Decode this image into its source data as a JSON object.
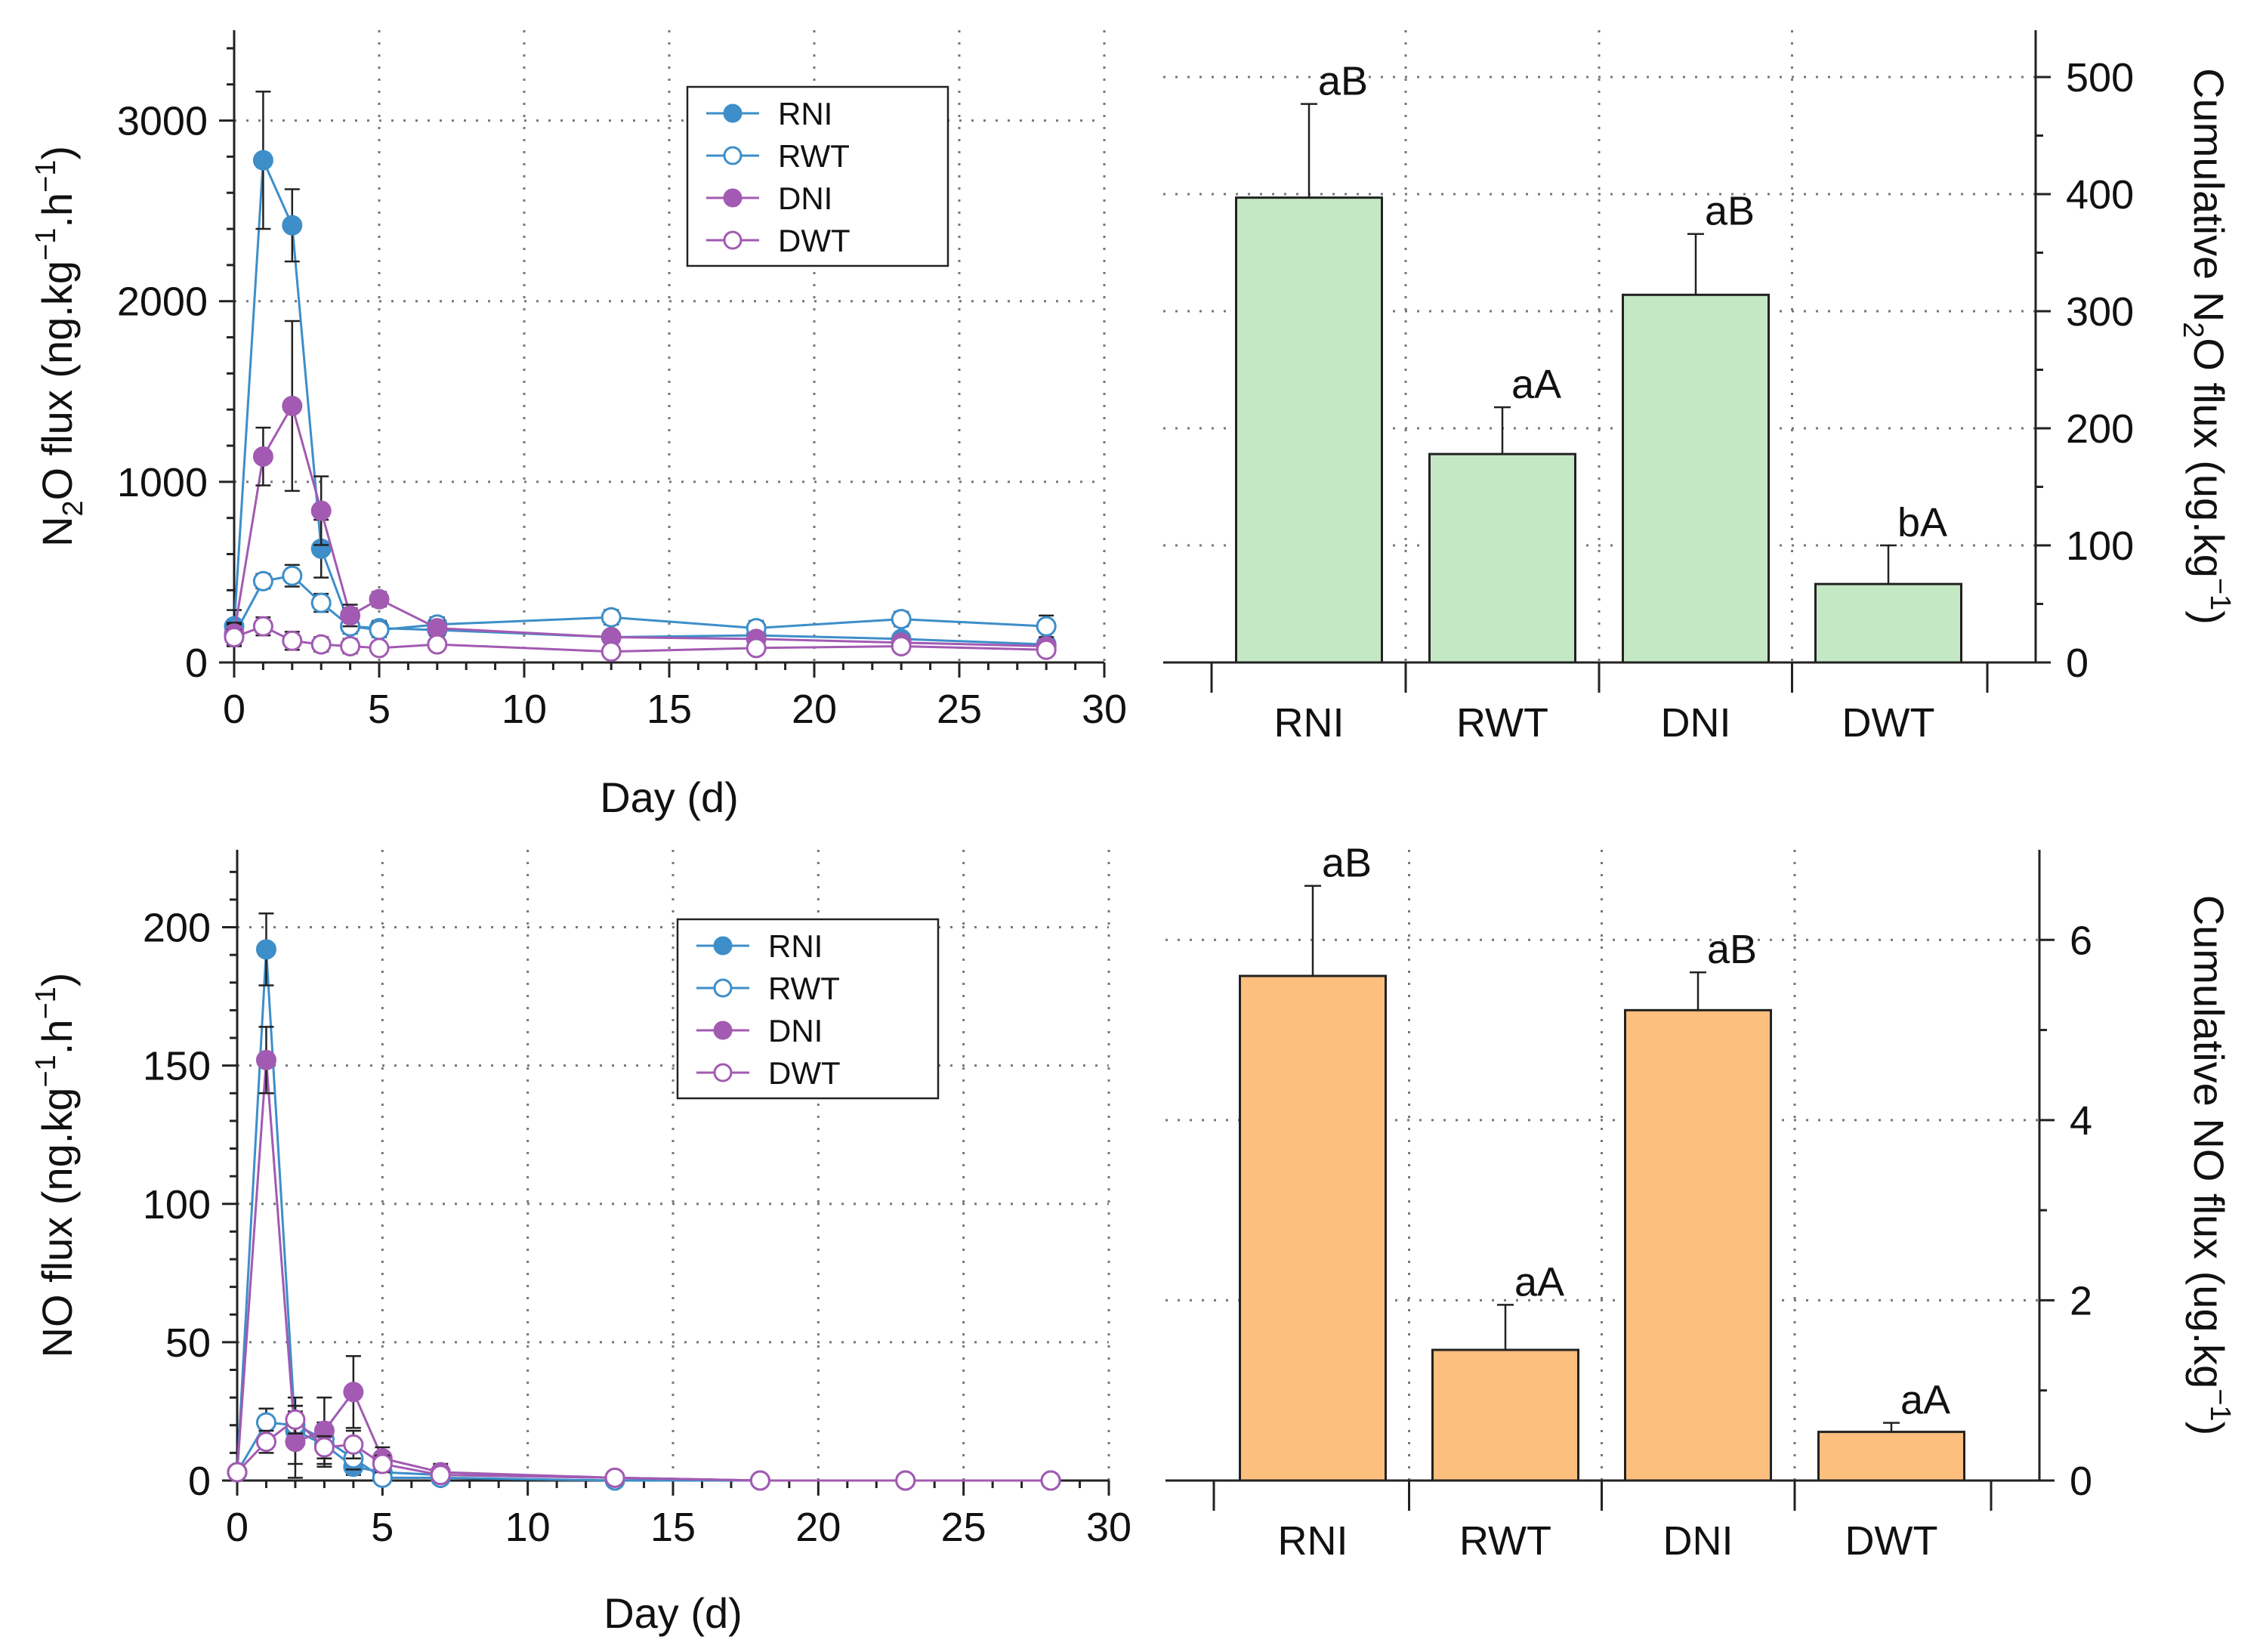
{
  "chart_data": [
    {
      "type": "line",
      "id": "n2o-line",
      "xlabel": "Day (d)",
      "ylabel_parts": [
        "N",
        "2",
        "O flux (ng.kg",
        "−1",
        ".h",
        "−1",
        ")"
      ],
      "xlim": [
        0,
        30
      ],
      "ylim": [
        0,
        3500
      ],
      "xticks": [
        0,
        5,
        10,
        15,
        20,
        25,
        30
      ],
      "xtick_labels": [
        "0",
        "5",
        "10",
        "15",
        "20",
        "25",
        "30"
      ],
      "yticks": [
        0,
        1000,
        2000,
        3000
      ],
      "ytick_labels": [
        "0",
        "1000",
        "2000",
        "3000"
      ],
      "grid": true,
      "legend_position": "top-center",
      "x": [
        0,
        1,
        2,
        3,
        4,
        5,
        7,
        13,
        18,
        23,
        28
      ],
      "series": [
        {
          "name": "RNI",
          "color": "#3d8ec9",
          "filled": true,
          "values": [
            200,
            2780,
            2420,
            630,
            200,
            190,
            180,
            140,
            150,
            130,
            100
          ],
          "errors": [
            90,
            380,
            200,
            160,
            100,
            40,
            50,
            30,
            30,
            30,
            30
          ]
        },
        {
          "name": "RWT",
          "color": "#3d8ec9",
          "filled": false,
          "values": [
            150,
            450,
            480,
            330,
            200,
            180,
            210,
            250,
            190,
            240,
            200
          ],
          "errors": [
            60,
            40,
            60,
            50,
            40,
            40,
            40,
            40,
            40,
            40,
            60
          ]
        },
        {
          "name": "DNI",
          "color": "#a25ab2",
          "filled": true,
          "values": [
            160,
            1140,
            1420,
            840,
            260,
            350,
            190,
            140,
            130,
            110,
            90
          ],
          "errors": [
            60,
            160,
            470,
            190,
            60,
            40,
            40,
            30,
            30,
            30,
            30
          ]
        },
        {
          "name": "DWT",
          "color": "#a25ab2",
          "filled": false,
          "values": [
            140,
            200,
            120,
            100,
            90,
            80,
            100,
            60,
            80,
            90,
            70
          ],
          "errors": [
            40,
            50,
            50,
            40,
            40,
            20,
            30,
            20,
            30,
            20,
            20
          ]
        }
      ]
    },
    {
      "type": "bar",
      "id": "n2o-bar",
      "categories": [
        "RNI",
        "RWT",
        "DNI",
        "DWT"
      ],
      "values": [
        397,
        178,
        314,
        67
      ],
      "errors": [
        80,
        40,
        52,
        33
      ],
      "letters": [
        "aB",
        "aA",
        "aB",
        "bA"
      ],
      "color": "#c5e8c4",
      "ylabel_parts": [
        "Cumulative N",
        "2",
        "O flux (ug.kg",
        "−1",
        ")"
      ],
      "ylim": [
        0,
        540
      ],
      "yticks": [
        0,
        100,
        200,
        300,
        400,
        500
      ],
      "ytick_labels": [
        "0",
        "100",
        "200",
        "300",
        "400",
        "500"
      ],
      "grid": true
    },
    {
      "type": "line",
      "id": "no-line",
      "xlabel": "Day (d)",
      "ylabel_parts": [
        "NO flux (ng.kg",
        "−1",
        ".h",
        "−1",
        ")"
      ],
      "xlim": [
        0,
        30
      ],
      "ylim": [
        0,
        228
      ],
      "xticks": [
        0,
        5,
        10,
        15,
        20,
        25,
        30
      ],
      "xtick_labels": [
        "0",
        "5",
        "10",
        "15",
        "20",
        "25",
        "30"
      ],
      "yticks": [
        0,
        50,
        100,
        150,
        200
      ],
      "ytick_labels": [
        "0",
        "50",
        "100",
        "150",
        "200"
      ],
      "grid": true,
      "legend_position": "top-center",
      "x": [
        0,
        1,
        2,
        3,
        4,
        5,
        7,
        13,
        18,
        23,
        28
      ],
      "series": [
        {
          "name": "RNI",
          "color": "#3d8ec9",
          "filled": true,
          "values": [
            3,
            192,
            18,
            13,
            5,
            3,
            2,
            1,
            0,
            0,
            0
          ],
          "errors": [
            2,
            13,
            12,
            8,
            3,
            2,
            2,
            1,
            1,
            1,
            1
          ]
        },
        {
          "name": "RWT",
          "color": "#3d8ec9",
          "filled": false,
          "values": [
            3,
            21,
            20,
            15,
            8,
            1,
            1,
            0,
            0,
            0,
            0
          ],
          "errors": [
            2,
            5,
            5,
            5,
            4,
            1,
            1,
            1,
            1,
            1,
            1
          ]
        },
        {
          "name": "DNI",
          "color": "#a25ab2",
          "filled": true,
          "values": [
            3,
            152,
            14,
            18,
            32,
            8,
            3,
            1,
            0,
            0,
            0
          ],
          "errors": [
            2,
            12,
            13,
            12,
            13,
            4,
            3,
            1,
            1,
            1,
            1
          ]
        },
        {
          "name": "DWT",
          "color": "#a25ab2",
          "filled": false,
          "values": [
            3,
            14,
            22,
            12,
            13,
            6,
            2,
            1,
            0,
            0,
            0
          ],
          "errors": [
            2,
            4,
            5,
            4,
            5,
            3,
            2,
            1,
            1,
            1,
            1
          ]
        }
      ]
    },
    {
      "type": "bar",
      "id": "no-bar",
      "categories": [
        "RNI",
        "RWT",
        "DNI",
        "DWT"
      ],
      "values": [
        5.6,
        1.45,
        5.22,
        0.54
      ],
      "errors": [
        1.0,
        0.5,
        0.42,
        0.1
      ],
      "letters": [
        "aB",
        "aA",
        "aB",
        "aA"
      ],
      "color": "#fcbf7e",
      "ylabel_parts": [
        "Cumulative NO flux (ug.kg",
        "−1",
        ")"
      ],
      "ylim": [
        0,
        7
      ],
      "yticks": [
        0,
        2,
        4,
        6
      ],
      "ytick_labels": [
        "0",
        "2",
        "4",
        "6"
      ],
      "grid": true
    }
  ]
}
